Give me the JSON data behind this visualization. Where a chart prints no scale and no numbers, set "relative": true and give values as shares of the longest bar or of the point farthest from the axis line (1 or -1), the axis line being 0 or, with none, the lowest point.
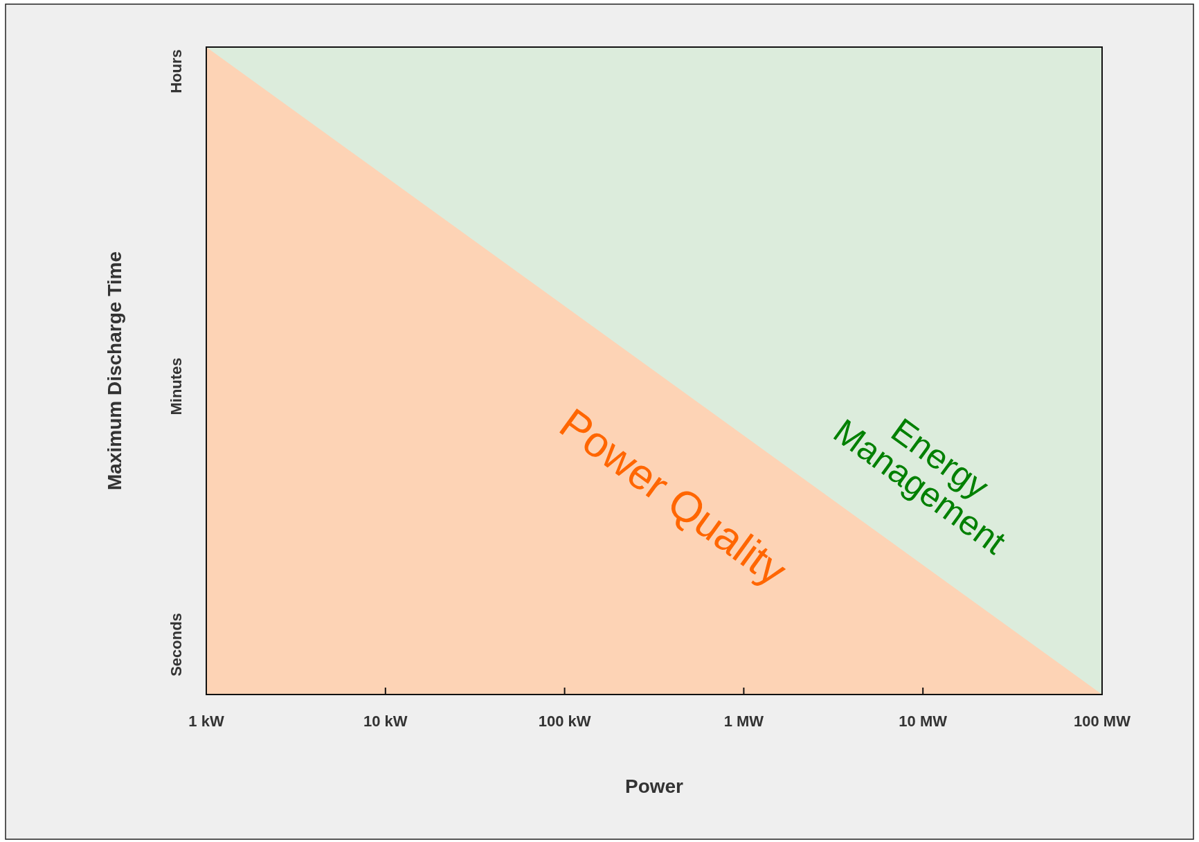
{
  "chart_data": {
    "type": "area",
    "xlabel": "Power",
    "ylabel": "Maximum Discharge Time",
    "relative": true,
    "categories": [
      "1 kW",
      "10 kW",
      "100 kW",
      "1 MW",
      "10 MW",
      "100 MW"
    ],
    "annotations": [
      "Seconds",
      "Minutes",
      "Hours",
      "Energy Management"
    ],
    "series": [
      {
        "name": "Power Quality",
        "color": "#fdd3b5",
        "values": [
          1,
          0.8,
          0.6,
          0.4,
          0.2,
          0
        ]
      }
    ]
  }
}
